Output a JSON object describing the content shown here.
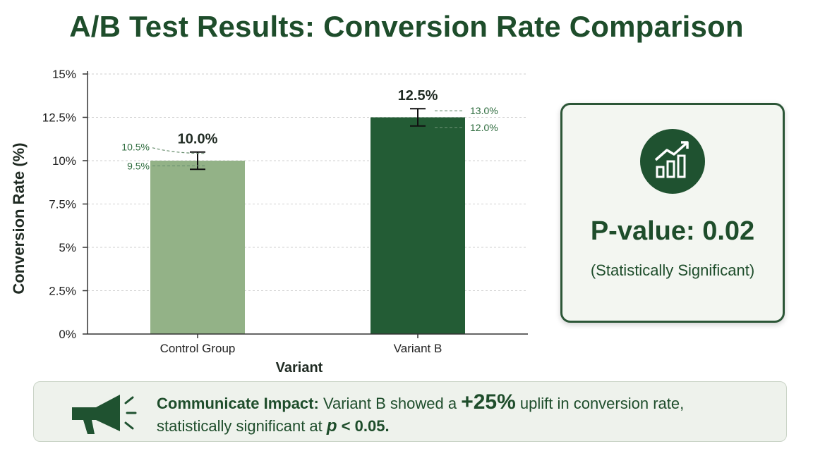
{
  "title": "A/B Test Results: Conversion Rate Comparison",
  "chart_data": {
    "type": "bar",
    "xlabel": "Variant",
    "ylabel": "Conversion Rate (%)",
    "ylim": [
      0,
      15
    ],
    "yticks": [
      0,
      2.5,
      5,
      7.5,
      10,
      12.5,
      15
    ],
    "ytick_labels": [
      "0%",
      "2.5%",
      "5%",
      "7.5%",
      "10%",
      "12.5%",
      "15%"
    ],
    "grid": true,
    "categories": [
      "Control Group",
      "Variant B"
    ],
    "values": [
      10.0,
      12.5
    ],
    "value_labels": [
      "10.0%",
      "12.5%"
    ],
    "error_low": [
      9.5,
      12.0
    ],
    "error_high": [
      10.5,
      13.0
    ],
    "error_low_labels": [
      "9.5%",
      "12.0%"
    ],
    "error_high_labels": [
      "10.5%",
      "13.0%"
    ],
    "colors": [
      "#93b287",
      "#235c35"
    ]
  },
  "pvalue_card": {
    "icon": "chart-growth-icon",
    "value_text": "P-value: 0.02",
    "significance": "(Statistically Significant)"
  },
  "impact": {
    "icon": "megaphone-icon",
    "heading": "Communicate Impact:",
    "text1": " Variant B showed a ",
    "uplift": "+25%",
    "text2": " uplift in conversion rate,",
    "text3": "statistically significant at ",
    "p_symbol": "p",
    "threshold": " < 0.05."
  }
}
